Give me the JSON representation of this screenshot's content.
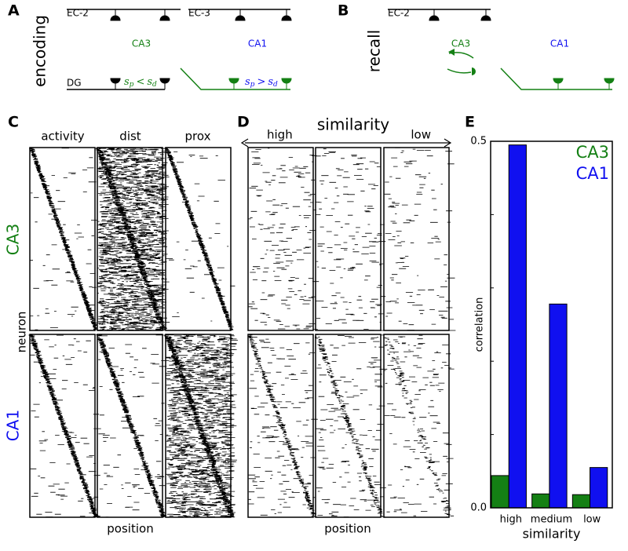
{
  "panel_labels": [
    "A",
    "B",
    "C",
    "D",
    "E"
  ],
  "panel_a": {
    "condition": "encoding",
    "ec_left": "EC-2",
    "ec_right": "EC-3",
    "dg": "DG",
    "ca3": "CA3",
    "ca1": "CA1",
    "formula_left": [
      "s",
      "p",
      "<",
      "s",
      "d"
    ],
    "formula_right": [
      "s",
      "p",
      ">",
      "s",
      "d"
    ]
  },
  "panel_b": {
    "condition": "recall",
    "ec": "EC-2",
    "ca3": "CA3",
    "ca1": "CA1"
  },
  "panel_c": {
    "columns": [
      "activity",
      "dist",
      "prox"
    ],
    "rows": [
      "CA3",
      "CA1"
    ],
    "ylabel": "neuron",
    "xlabel": "position"
  },
  "panel_d": {
    "title": "similarity",
    "left": "high",
    "right": "low",
    "xlabel": "position"
  },
  "chart_data": {
    "type": "bar",
    "xlabel": "similarity",
    "ylabel": "correlation",
    "categories": [
      "high",
      "medium",
      "low"
    ],
    "series": [
      {
        "name": "CA3",
        "color": "#148014",
        "values": [
          0.044,
          0.019,
          0.018
        ]
      },
      {
        "name": "CA1",
        "color": "#1010f0",
        "values": [
          0.495,
          0.278,
          0.055
        ]
      }
    ],
    "ylim": [
      0,
      0.5
    ],
    "yticks": [
      {
        "value": 0,
        "label": "0.0"
      },
      {
        "value": 0.5,
        "label": "0.5"
      }
    ],
    "legend": "upper right"
  }
}
